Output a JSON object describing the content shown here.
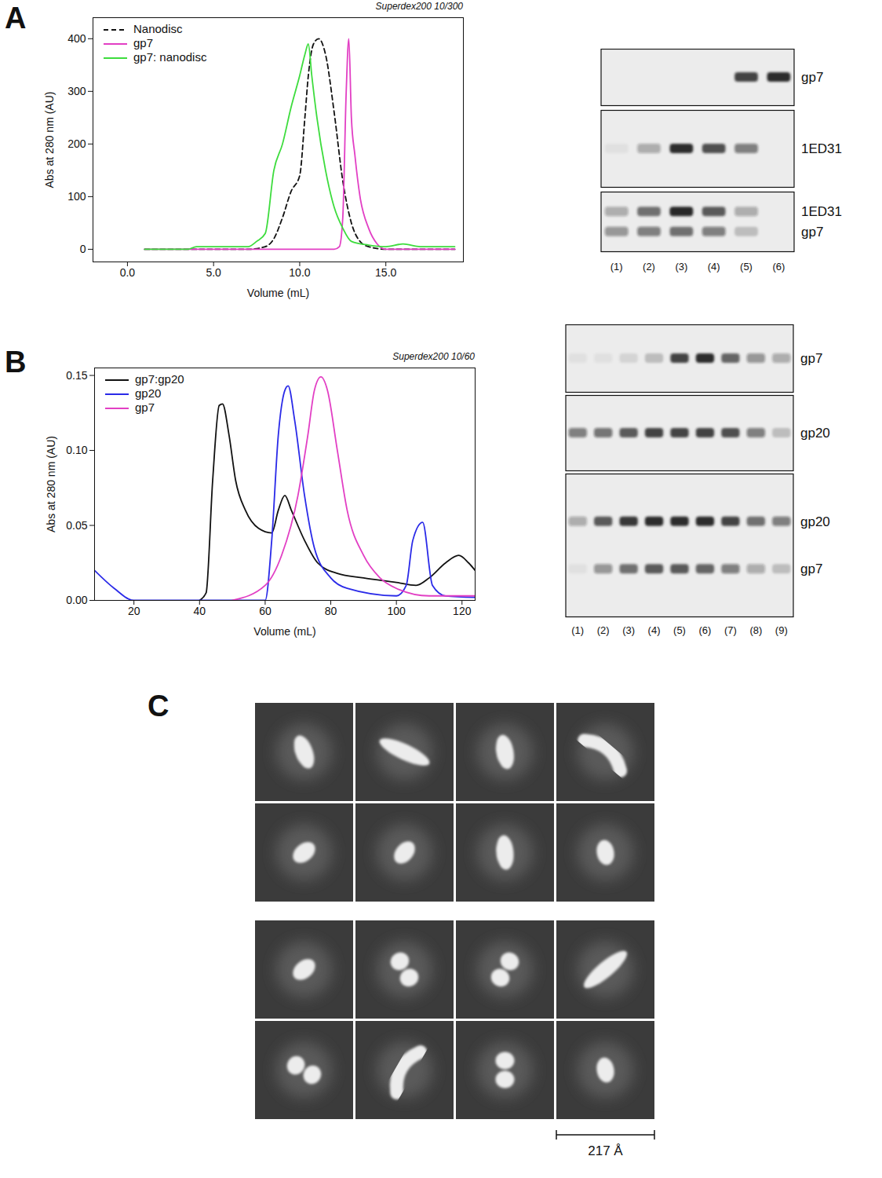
{
  "panel_labels": [
    "A",
    "B",
    "C"
  ],
  "chart_data": [
    {
      "type": "line",
      "title": "Superdex200 10/300",
      "x_label": "Volume (mL)",
      "y_label": "Abs at 280 nm (AU)",
      "xlim": [
        -2,
        19.5
      ],
      "xticks": [
        {
          "value": 0,
          "label": "0.0"
        },
        {
          "value": 5,
          "label": "5.0"
        },
        {
          "value": 10,
          "label": "10.0"
        },
        {
          "value": 15,
          "label": "15.0"
        }
      ],
      "ylim": [
        -24,
        440
      ],
      "yticks": [
        0,
        100,
        200,
        300,
        400
      ],
      "legend": "top-left",
      "series": [
        {
          "name": "Nanodisc",
          "color": "#111111",
          "line_style": "dashed",
          "x": [
            1,
            7,
            8,
            8.5,
            9,
            9.5,
            10,
            10.3,
            10.5,
            10.8,
            11.1,
            11.5,
            12,
            12.5,
            13,
            13.5,
            14,
            15,
            19
          ],
          "values": [
            0,
            0,
            5,
            20,
            60,
            110,
            140,
            250,
            330,
            390,
            400,
            370,
            260,
            130,
            50,
            15,
            5,
            0,
            0
          ]
        },
        {
          "name": "gp7",
          "color": "#e23fc4",
          "line_style": "solid",
          "x": [
            1,
            12,
            12.3,
            12.5,
            12.7,
            12.85,
            13,
            13.2,
            13.5,
            14,
            14.5,
            15,
            19
          ],
          "values": [
            0,
            0,
            5,
            60,
            300,
            400,
            250,
            180,
            100,
            40,
            10,
            0,
            0
          ]
        },
        {
          "name": "gp7: nanodisc",
          "color": "#3ddc3d",
          "line_style": "solid",
          "x": [
            1,
            3.5,
            4,
            7,
            7.5,
            8,
            8.5,
            9,
            9.5,
            10,
            10.3,
            10.5,
            10.7,
            11,
            11.5,
            12,
            12.5,
            13,
            14,
            15,
            16,
            17,
            19
          ],
          "values": [
            0,
            0,
            5,
            5,
            15,
            30,
            150,
            200,
            270,
            330,
            370,
            390,
            330,
            250,
            150,
            80,
            40,
            15,
            8,
            5,
            10,
            5,
            5
          ]
        }
      ]
    },
    {
      "type": "line",
      "title": "Superdex200 10/60",
      "x_label": "Volume (mL)",
      "y_label": "Abs at 280 nm (AU)",
      "xlim": [
        8,
        124
      ],
      "xticks": [
        20,
        40,
        60,
        80,
        100,
        120
      ],
      "ylim": [
        0,
        0.155
      ],
      "yticks": [
        {
          "value": 0,
          "label": "0.00"
        },
        {
          "value": 0.05,
          "label": "0.05"
        },
        {
          "value": 0.1,
          "label": "0.10"
        },
        {
          "value": 0.15,
          "label": "0.15"
        }
      ],
      "legend": "top-left",
      "series": [
        {
          "name": "gp7:gp20",
          "color": "#111111",
          "line_style": "solid",
          "x": [
            40,
            42,
            44,
            46,
            47,
            49,
            51,
            54,
            58,
            62,
            64,
            66,
            68,
            72,
            76,
            82,
            90,
            100,
            106,
            110,
            115,
            119,
            122,
            124
          ],
          "values": [
            0,
            0.005,
            0.08,
            0.13,
            0.131,
            0.11,
            0.08,
            0.06,
            0.048,
            0.045,
            0.06,
            0.07,
            0.06,
            0.04,
            0.025,
            0.018,
            0.015,
            0.012,
            0.01,
            0.015,
            0.025,
            0.03,
            0.025,
            0.02
          ]
        },
        {
          "name": "gp20",
          "color": "#2a2ae8",
          "line_style": "solid",
          "x": [
            8,
            14,
            20,
            60,
            62,
            64,
            66,
            67,
            69,
            72,
            75,
            80,
            85,
            100,
            103,
            105,
            108,
            111,
            115,
            124
          ],
          "values": [
            0.02,
            0.008,
            0,
            0,
            0.04,
            0.11,
            0.14,
            0.143,
            0.12,
            0.07,
            0.035,
            0.015,
            0.008,
            0.003,
            0.01,
            0.04,
            0.052,
            0.01,
            0.003,
            0.002
          ]
        },
        {
          "name": "gp7",
          "color": "#e23fc4",
          "line_style": "solid",
          "x": [
            50,
            60,
            65,
            70,
            73,
            75,
            77,
            79,
            82,
            85,
            90,
            95,
            100,
            110,
            124
          ],
          "values": [
            0,
            0.01,
            0.03,
            0.07,
            0.11,
            0.14,
            0.149,
            0.14,
            0.1,
            0.06,
            0.03,
            0.015,
            0.008,
            0.003,
            0.003
          ]
        }
      ]
    }
  ],
  "gels": [
    {
      "panel": "A",
      "lane_labels": [
        "(1)",
        "(2)",
        "(3)",
        "(4)",
        "(5)",
        "(6)"
      ],
      "strips": [
        {
          "bands": [
            {
              "label": "gp7",
              "intensity": [
                0,
                0,
                0,
                0,
                0.8,
                0.9
              ]
            }
          ]
        },
        {
          "bands": [
            {
              "label": "1ED31",
              "intensity": [
                0.05,
                0.3,
                0.9,
                0.75,
                0.5,
                0
              ]
            }
          ]
        },
        {
          "bands": [
            {
              "label": "1ED31",
              "intensity": [
                0.3,
                0.6,
                0.95,
                0.7,
                0.3,
                0
              ]
            },
            {
              "label": "gp7",
              "intensity": [
                0.4,
                0.5,
                0.6,
                0.5,
                0.2,
                0
              ]
            }
          ]
        }
      ]
    },
    {
      "panel": "B",
      "lane_labels": [
        "(1)",
        "(2)",
        "(3)",
        "(4)",
        "(5)",
        "(6)",
        "(7)",
        "(8)",
        "(9)"
      ],
      "strips": [
        {
          "bands": [
            {
              "label": "gp7",
              "intensity": [
                0.05,
                0.05,
                0.1,
                0.2,
                0.8,
                0.9,
                0.65,
                0.4,
                0.3
              ]
            }
          ]
        },
        {
          "bands": [
            {
              "label": "gp20",
              "intensity": [
                0.5,
                0.55,
                0.7,
                0.8,
                0.8,
                0.8,
                0.75,
                0.5,
                0.2
              ]
            }
          ]
        },
        {
          "bands": [
            {
              "label": "gp20",
              "intensity": [
                0.3,
                0.7,
                0.85,
                0.9,
                0.9,
                0.9,
                0.8,
                0.6,
                0.5
              ]
            },
            {
              "label": "gp7",
              "intensity": [
                0.05,
                0.4,
                0.6,
                0.7,
                0.7,
                0.65,
                0.5,
                0.3,
                0.2
              ]
            }
          ]
        }
      ]
    }
  ],
  "class_averages": {
    "groups": [
      {
        "tiles": [
          {
            "shape": "rod",
            "angle": 70
          },
          {
            "shape": "long_rod",
            "angle": 25
          },
          {
            "shape": "rod",
            "angle": 80
          },
          {
            "shape": "bent_rod",
            "angle": 40
          },
          {
            "shape": "oval",
            "angle": -40
          },
          {
            "shape": "oval",
            "angle": -50
          },
          {
            "shape": "rod",
            "angle": 85
          },
          {
            "shape": "oval",
            "angle": 80
          }
        ]
      },
      {
        "tiles": [
          {
            "shape": "oval",
            "angle": -40
          },
          {
            "shape": "two_disks",
            "angle": 60
          },
          {
            "shape": "two_disks",
            "angle": -60
          },
          {
            "shape": "long_rod",
            "angle": -40
          },
          {
            "shape": "two_disks",
            "angle": 30
          },
          {
            "shape": "bent_rod",
            "angle": -60
          },
          {
            "shape": "two_disks",
            "angle": 90
          },
          {
            "shape": "oval",
            "angle": 80
          }
        ]
      }
    ],
    "scale_bar": "217 Å"
  }
}
